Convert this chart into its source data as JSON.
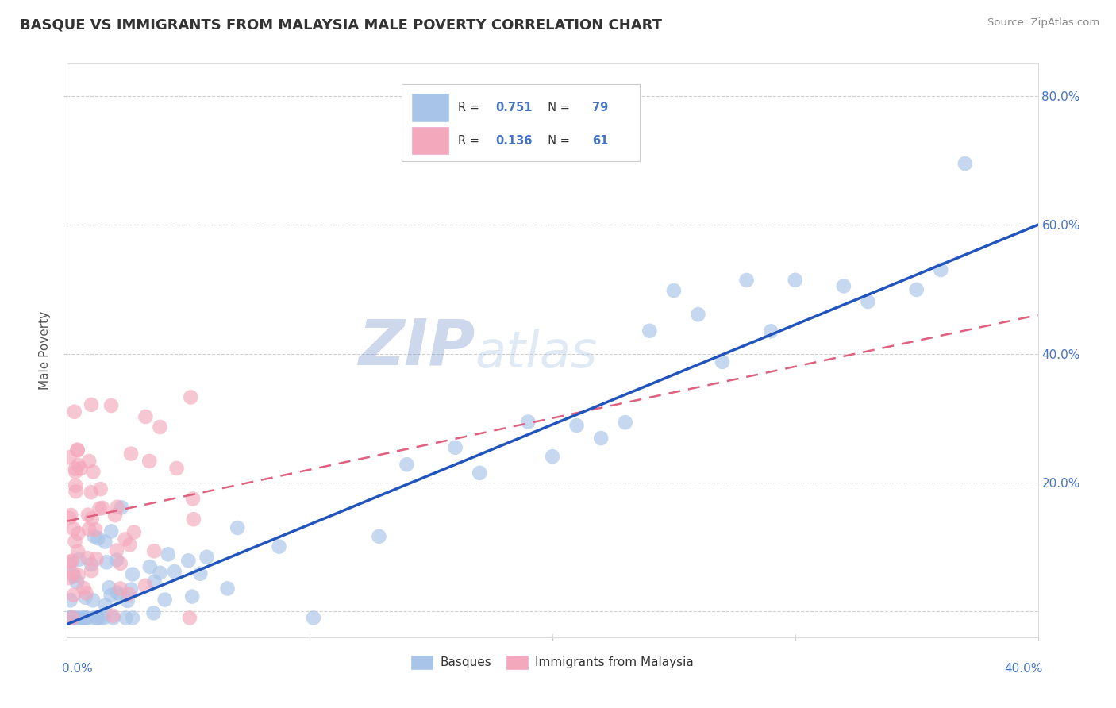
{
  "title": "BASQUE VS IMMIGRANTS FROM MALAYSIA MALE POVERTY CORRELATION CHART",
  "source": "Source: ZipAtlas.com",
  "ylabel": "Male Poverty",
  "xmin": 0.0,
  "xmax": 0.4,
  "ymin": -0.04,
  "ymax": 0.85,
  "blue_R": 0.751,
  "blue_N": 79,
  "pink_R": 0.136,
  "pink_N": 61,
  "blue_color": "#a8c4e8",
  "pink_color": "#f4a8bc",
  "blue_line_color": "#2255bb",
  "pink_line_color": "#e06080",
  "grid_color": "#cccccc",
  "background_color": "#ffffff",
  "legend_label_blue": "Basques",
  "legend_label_pink": "Immigrants from Malaysia",
  "blue_line_x0": 0.0,
  "blue_line_y0": -0.02,
  "blue_line_x1": 0.4,
  "blue_line_y1": 0.6,
  "pink_line_x0": 0.0,
  "pink_line_y0": 0.14,
  "pink_line_x1": 0.4,
  "pink_line_y1": 0.46
}
